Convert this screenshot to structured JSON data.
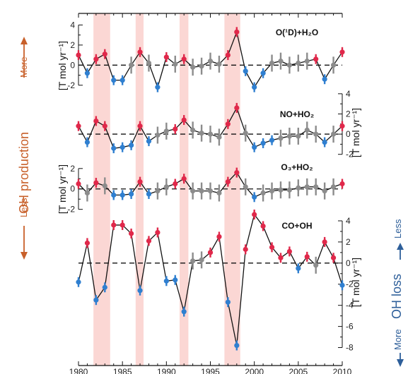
{
  "chart_data": {
    "type": "line",
    "title": "",
    "xlabel": "",
    "x_ticks": [
      "1980",
      "1985",
      "1990",
      "1995",
      "2000",
      "2005",
      "2010"
    ],
    "xlim": [
      1980,
      2010
    ],
    "highlight_spans": [
      [
        1981.7,
        1983.6
      ],
      [
        1986.5,
        1987.4
      ],
      [
        1991.5,
        1992.5
      ],
      [
        1996.6,
        1998.4
      ]
    ],
    "colors": {
      "positive": "#e0284a",
      "negative": "#2f7fd0",
      "neutral": "#8c8c8c",
      "span": "#fbd7d4",
      "line": "#111111"
    },
    "panels": [
      {
        "name": "O(¹D)+H₂O",
        "ylim": [
          -3,
          4.8
        ],
        "yticks": [
          "4",
          "2",
          "0",
          "-2"
        ],
        "ytick_values": [
          4,
          2,
          0,
          -2
        ],
        "axis_side": "left",
        "unit_label": "[T mol yr⁻¹]",
        "x": [
          1980,
          1981,
          1982,
          1983,
          1984,
          1985,
          1986,
          1987,
          1988,
          1989,
          1990,
          1991,
          1992,
          1993,
          1994,
          1995,
          1996,
          1997,
          1998,
          1999,
          2000,
          2001,
          2002,
          2003,
          2004,
          2005,
          2006,
          2007,
          2008,
          2009,
          2010
        ],
        "y": [
          1.0,
          -0.8,
          0.6,
          1.1,
          -1.5,
          -1.5,
          0.0,
          1.3,
          0.2,
          -2.2,
          0.8,
          0.1,
          0.6,
          -0.2,
          -0.1,
          0.4,
          0.1,
          1.0,
          3.3,
          -0.6,
          -2.2,
          -0.8,
          0.2,
          0.4,
          0.0,
          0.2,
          0.4,
          0.6,
          -1.4,
          0.0,
          1.3
        ]
      },
      {
        "name": "NO+HO₂",
        "ylim": [
          -3,
          4.2
        ],
        "yticks": [
          "4",
          "2",
          "0",
          "-2"
        ],
        "ytick_values": [
          4,
          2,
          0,
          -2
        ],
        "axis_side": "right",
        "unit_label": "[T mol yr⁻¹]",
        "x": [
          1980,
          1981,
          1982,
          1983,
          1984,
          1985,
          1986,
          1987,
          1988,
          1989,
          1990,
          1991,
          1992,
          1993,
          1994,
          1995,
          1996,
          1997,
          1998,
          1999,
          2000,
          2001,
          2002,
          2003,
          2004,
          2005,
          2006,
          2007,
          2008,
          2009,
          2010
        ],
        "y": [
          0.8,
          -0.8,
          1.3,
          0.8,
          -1.4,
          -1.3,
          -1.1,
          0.8,
          -0.7,
          -0.1,
          0.3,
          0.5,
          1.4,
          0.4,
          0.1,
          0.0,
          -0.3,
          1.0,
          2.6,
          0.1,
          -1.3,
          -0.9,
          -0.6,
          -0.4,
          -0.2,
          -0.2,
          0.4,
          0.0,
          -0.8,
          0.0,
          0.8
        ]
      },
      {
        "name": "O₃+HO₂",
        "ylim": [
          -2.3,
          2.4
        ],
        "yticks": [
          "2",
          "0",
          "-2"
        ],
        "ytick_values": [
          2,
          0,
          -2
        ],
        "axis_side": "left",
        "unit_label": "[T mol yr⁻¹]",
        "x": [
          1980,
          1981,
          1982,
          1983,
          1984,
          1985,
          1986,
          1987,
          1988,
          1989,
          1990,
          1991,
          1992,
          1993,
          1994,
          1995,
          1996,
          1997,
          1998,
          1999,
          2000,
          2001,
          2002,
          2003,
          2004,
          2005,
          2006,
          2007,
          2008,
          2009,
          2010
        ],
        "y": [
          0.5,
          -0.4,
          0.6,
          0.3,
          -0.6,
          -0.6,
          -0.5,
          0.7,
          -0.5,
          -0.2,
          0.2,
          0.5,
          1.0,
          -0.2,
          -0.2,
          -0.2,
          -0.4,
          0.7,
          1.6,
          0.2,
          -0.8,
          -0.4,
          -0.2,
          -0.1,
          -0.1,
          0.1,
          0.2,
          0.2,
          -0.2,
          0.2,
          0.5
        ]
      },
      {
        "name": "CO+OH",
        "ylim": [
          -8.5,
          4.8
        ],
        "yticks": [
          "4",
          "2",
          "0",
          "-2",
          "-4",
          "-6",
          "-8"
        ],
        "ytick_values": [
          4,
          2,
          0,
          -2,
          -4,
          -6,
          -8
        ],
        "axis_side": "right",
        "unit_label": "[T mol yr⁻¹]",
        "x": [
          1980,
          1981,
          1982,
          1983,
          1984,
          1985,
          1986,
          1987,
          1988,
          1989,
          1990,
          1991,
          1992,
          1993,
          1994,
          1995,
          1996,
          1997,
          1998,
          1999,
          2000,
          2001,
          2002,
          2003,
          2004,
          2005,
          2006,
          2007,
          2008,
          2009,
          2010
        ],
        "y": [
          -1.8,
          1.9,
          -3.5,
          -2.3,
          3.6,
          3.6,
          2.8,
          -2.6,
          2.1,
          2.9,
          -1.7,
          -1.6,
          -4.6,
          0.2,
          0.3,
          1.0,
          2.5,
          -3.7,
          -7.8,
          1.3,
          4.6,
          3.5,
          1.5,
          0.5,
          1.1,
          -0.5,
          0.6,
          -0.2,
          2.0,
          0.5,
          -2.1
        ]
      }
    ],
    "side_annotations": {
      "left_top": "More",
      "left_middle": "OH production",
      "left_bottom": "Less",
      "right_top": "Less",
      "right_middle": "OH loss",
      "right_bottom": "More"
    }
  }
}
